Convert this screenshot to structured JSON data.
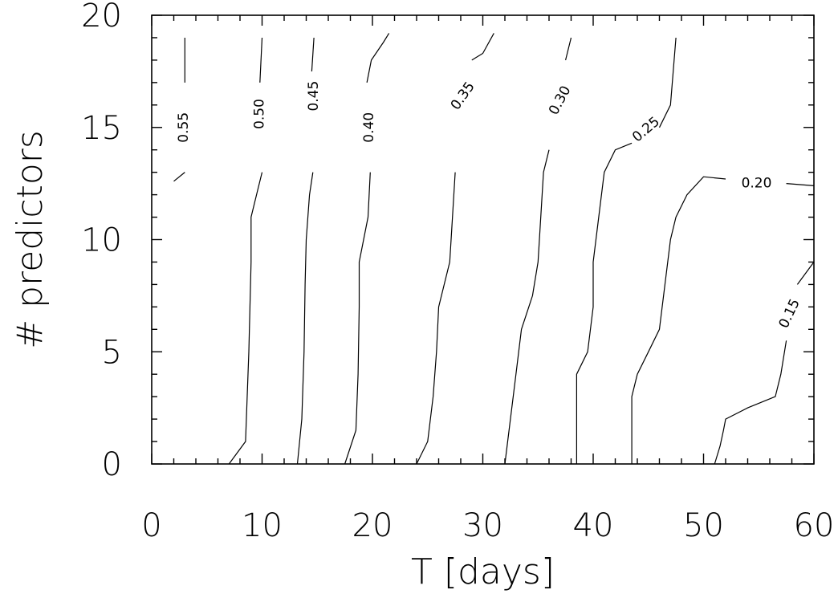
{
  "chart_data": {
    "type": "contour",
    "xlabel": "T [days]",
    "ylabel": "# predictors",
    "xlim": [
      0,
      60
    ],
    "ylim": [
      0,
      20
    ],
    "x_ticks": [
      "0",
      "10",
      "20",
      "30",
      "40",
      "50",
      "60"
    ],
    "y_ticks": [
      "0",
      "5",
      "10",
      "15",
      "20"
    ],
    "grid": false,
    "contours": [
      {
        "level": "0.55",
        "x": [
          2.0,
          3.0
        ],
        "y": [
          12.6,
          13.0
        ],
        "x2": [
          3.0,
          3.0
        ],
        "y2": [
          17.0,
          19.0
        ]
      },
      {
        "level": "0.50",
        "x": [
          7.0,
          8.5,
          8.8,
          9.0,
          9.0,
          9.5,
          10.0
        ],
        "y": [
          0,
          1.0,
          5.0,
          9.0,
          11.0,
          12.0,
          13.0
        ],
        "x2": [
          9.8,
          10.0
        ],
        "y2": [
          17.0,
          19.0
        ]
      },
      {
        "level": "0.45",
        "x": [
          13.2,
          13.6,
          13.8,
          13.9,
          14.0,
          14.3,
          14.6
        ],
        "y": [
          0,
          2.0,
          5.0,
          8.0,
          10.0,
          12.0,
          13.0
        ],
        "x2": [
          14.5,
          14.7
        ],
        "y2": [
          17.5,
          19.0
        ]
      },
      {
        "level": "0.40",
        "x": [
          17.5,
          18.5,
          18.7,
          18.8,
          18.8,
          19.6,
          19.8
        ],
        "y": [
          0,
          1.5,
          4.0,
          7.0,
          9.0,
          11.0,
          13.0
        ],
        "x2": [
          19.5,
          19.9,
          21.0,
          21.5
        ],
        "y2": [
          17.0,
          18.0,
          18.8,
          19.2
        ]
      },
      {
        "level": "0.35",
        "x": [
          24.0,
          25.0,
          25.5,
          25.8,
          26.0,
          26.5,
          27.0,
          27.5
        ],
        "y": [
          0,
          1.0,
          3.0,
          5.0,
          7.0,
          8.0,
          9.0,
          13.0
        ],
        "x2": [
          29.0,
          30.0,
          31.0
        ],
        "y2": [
          18.0,
          18.3,
          19.2
        ]
      },
      {
        "level": "0.30",
        "x": [
          32.0,
          32.5,
          33.0,
          33.5,
          34.5,
          35.0,
          35.5,
          36.0
        ],
        "y": [
          0,
          2.0,
          4.0,
          6.0,
          7.5,
          9.0,
          13.0,
          14.0
        ],
        "x2": [
          37.5,
          38.0
        ],
        "y2": [
          18.0,
          19.0
        ]
      },
      {
        "level": "0.25",
        "x": [
          38.5,
          38.5,
          39.5,
          40.0,
          40.0,
          40.5,
          41.0,
          42.0,
          43.5
        ],
        "y": [
          0,
          4.0,
          5.0,
          7.0,
          9.0,
          11.0,
          13.0,
          14.0,
          14.3
        ],
        "x2": [
          46.0,
          47.0,
          47.5
        ],
        "y2": [
          15.0,
          16.0,
          19.0
        ]
      },
      {
        "level": "0.20",
        "x": [
          43.5,
          43.5,
          44.0,
          45.0,
          46.0,
          46.5,
          47.0,
          47.5,
          48.5,
          50.0,
          52.0
        ],
        "y": [
          0,
          3.0,
          4.0,
          5.0,
          6.0,
          8.0,
          10.0,
          11.0,
          12.0,
          12.8,
          12.7
        ],
        "x2": [
          57.5,
          60.0
        ],
        "y2": [
          12.5,
          12.4
        ]
      },
      {
        "level": "0.15",
        "x": [
          51.0,
          51.5,
          51.8,
          52.0,
          54.0,
          56.5,
          57.0,
          57.5
        ],
        "y": [
          0,
          0.8,
          1.5,
          2.0,
          2.5,
          3.0,
          4.0,
          5.5
        ],
        "x2": [
          58.5,
          60.0
        ],
        "y2": [
          8.0,
          9.0
        ]
      }
    ],
    "contour_labels": [
      {
        "text": "0.55",
        "x": 2.9,
        "y": 15.0,
        "angle": -90
      },
      {
        "text": "0.50",
        "x": 9.8,
        "y": 15.6,
        "angle": -90
      },
      {
        "text": "0.45",
        "x": 14.7,
        "y": 16.4,
        "angle": -90
      },
      {
        "text": "0.40",
        "x": 19.7,
        "y": 15.0,
        "angle": -90
      },
      {
        "text": "0.35",
        "x": 28.2,
        "y": 16.4,
        "angle": -55
      },
      {
        "text": "0.30",
        "x": 37.0,
        "y": 16.2,
        "angle": -62
      },
      {
        "text": "0.25",
        "x": 44.8,
        "y": 14.9,
        "angle": -40
      },
      {
        "text": "0.20",
        "x": 54.8,
        "y": 12.5,
        "angle": 0
      },
      {
        "text": "0.15",
        "x": 57.8,
        "y": 6.7,
        "angle": -65
      }
    ]
  }
}
